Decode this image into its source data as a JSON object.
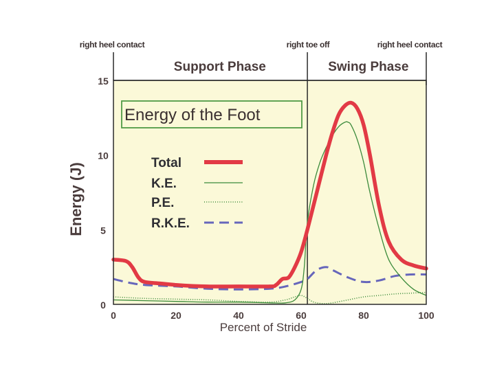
{
  "chart_data": {
    "type": "line",
    "title": "Energy of the Foot",
    "xlabel": "Percent of Stride",
    "ylabel": "Energy (J)",
    "xlim": [
      0,
      100
    ],
    "ylim": [
      0,
      15
    ],
    "xticks": [
      "0",
      "20",
      "40",
      "60",
      "80",
      "100"
    ],
    "xtick_values": [
      0,
      20,
      40,
      60,
      80,
      100
    ],
    "yticks": [
      "0",
      "5",
      "10",
      "15"
    ],
    "ytick_values": [
      0,
      5,
      10,
      15
    ],
    "phase_labels": [
      {
        "text": "Support Phase",
        "x": 27
      },
      {
        "text": "Swing Phase",
        "x": 81.5
      }
    ],
    "events": [
      {
        "text": "right heel contact",
        "x": 0
      },
      {
        "text": "right toe off",
        "x": 62
      },
      {
        "text": "right heel contact",
        "x": 100
      }
    ],
    "phase_boundary": 62,
    "series": [
      {
        "name": "Total",
        "color": "#e23a45",
        "style": "solid",
        "x": [
          0,
          4,
          6,
          8,
          10,
          15,
          20,
          30,
          40,
          50,
          52,
          54,
          56,
          58,
          60,
          62,
          65,
          68,
          70,
          72,
          74,
          76,
          78,
          80,
          82,
          85,
          88,
          92,
          96,
          100
        ],
        "y": [
          3.0,
          2.9,
          2.5,
          1.8,
          1.5,
          1.4,
          1.3,
          1.2,
          1.2,
          1.2,
          1.3,
          1.7,
          1.8,
          2.5,
          3.5,
          5.0,
          7.5,
          10.0,
          11.5,
          12.7,
          13.3,
          13.5,
          13.1,
          12.0,
          10.0,
          6.5,
          4.2,
          3.0,
          2.6,
          2.4
        ]
      },
      {
        "name": "K.E.",
        "color": "#3a8a3a",
        "style": "thin",
        "x": [
          0,
          10,
          20,
          30,
          40,
          50,
          55,
          58,
          60,
          61,
          62,
          64,
          66,
          68,
          70,
          72,
          74,
          75,
          76,
          78,
          80,
          82,
          85,
          88,
          92,
          96,
          100
        ],
        "y": [
          0.3,
          0.25,
          0.2,
          0.15,
          0.15,
          0.1,
          0.1,
          0.3,
          1.0,
          2.5,
          5.5,
          8.0,
          9.5,
          10.5,
          11.3,
          11.9,
          12.2,
          12.2,
          12.0,
          11.0,
          9.5,
          7.5,
          5.0,
          3.0,
          1.8,
          1.0,
          0.6
        ]
      },
      {
        "name": "P.E.",
        "color": "#3a8a3a",
        "style": "dotted",
        "x": [
          0,
          10,
          20,
          30,
          40,
          50,
          55,
          58,
          60,
          62,
          64,
          67,
          70,
          75,
          80,
          85,
          90,
          95,
          100
        ],
        "y": [
          0.5,
          0.4,
          0.35,
          0.3,
          0.2,
          0.15,
          0.3,
          0.5,
          0.6,
          0.4,
          0.15,
          0.05,
          0.1,
          0.3,
          0.5,
          0.6,
          0.7,
          0.75,
          0.8
        ]
      },
      {
        "name": "R.K.E.",
        "color": "#6666bb",
        "style": "dashed",
        "x": [
          0,
          5,
          10,
          20,
          30,
          40,
          50,
          55,
          60,
          62,
          65,
          68,
          70,
          75,
          80,
          85,
          90,
          95,
          100
        ],
        "y": [
          1.7,
          1.45,
          1.3,
          1.2,
          1.05,
          1.0,
          1.05,
          1.2,
          1.5,
          1.7,
          2.3,
          2.5,
          2.3,
          1.8,
          1.5,
          1.6,
          1.9,
          2.0,
          2.0
        ]
      }
    ]
  }
}
